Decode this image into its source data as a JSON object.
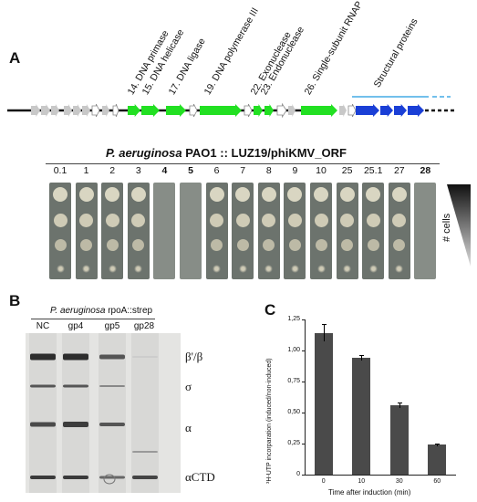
{
  "panel_a": {
    "letter": "A",
    "gene_labels": [
      "14. DNA primase",
      "15. DNA helicase",
      "17. DNA ligase",
      "19. DNA polymerase III",
      "22. Exonuclease",
      "23. Endonuclease",
      "26. Single-subunit RNAP",
      "Structural proteins"
    ],
    "plate_title_species": "P. aeruginosa",
    "plate_title_rest": " PAO1 :: LUZ19/phiKMV_ORF",
    "orf_labels": [
      "0.1",
      "1",
      "2",
      "3",
      "4",
      "5",
      "6",
      "7",
      "8",
      "9",
      "10",
      "25",
      "25.1",
      "27",
      "28"
    ],
    "bold_orfs": [
      "4",
      "5",
      "28"
    ],
    "cells_label": "# cells",
    "colors": {
      "green": "#22e022",
      "blue": "#1a3fd6",
      "grey": "#c8c8c8",
      "line_blue": "#1e9be0"
    }
  },
  "panel_b": {
    "letter": "B",
    "title_species": "P. aeruginosa",
    "title_rest": " rpoA::strep",
    "lanes": [
      "NC",
      "gp4",
      "gp5",
      "gp28"
    ],
    "band_labels": [
      "β'/β",
      "σ",
      "α",
      "αCTD"
    ]
  },
  "panel_c": {
    "letter": "C",
    "chart_data": {
      "type": "bar",
      "categories": [
        "0",
        "10",
        "30",
        "60"
      ],
      "values": [
        1.14,
        0.94,
        0.56,
        0.24
      ],
      "errors": [
        0.07,
        0.02,
        0.02,
        0.01
      ],
      "ylabel": "³H-UTP incorparation (induced/non-induced)",
      "xlabel": "Time after induction (min)",
      "ylim": [
        0,
        1.25
      ],
      "yticks": [
        "0",
        "0,25",
        "0,50",
        "0,75",
        "1,00",
        "1,25"
      ]
    }
  }
}
